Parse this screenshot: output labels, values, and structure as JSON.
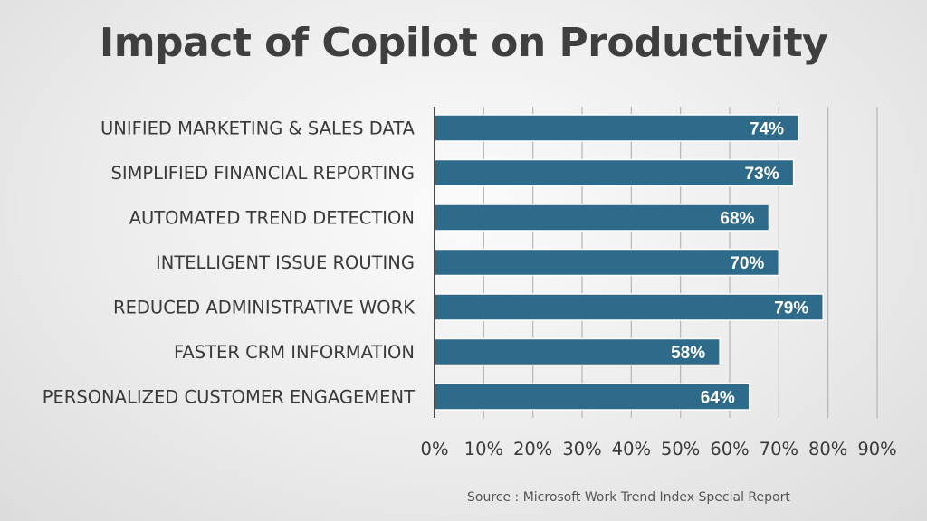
{
  "title": "Impact of Copilot on Productivity",
  "source": "Source : Microsoft Work Trend Index Special Report",
  "colors": {
    "bar": "#2e6b8b",
    "bar_border": "#ffffff",
    "grid": "#b5b5b5",
    "axis": "#4a4a4a",
    "label": "#3a3a3a",
    "value_label": "#ffffff"
  },
  "chart_data": {
    "type": "bar",
    "orientation": "horizontal",
    "title": "Impact of Copilot on Productivity",
    "categories": [
      "UNIFIED MARKETING & SALES DATA",
      "SIMPLIFIED FINANCIAL REPORTING",
      "AUTOMATED TREND DETECTION",
      "INTELLIGENT ISSUE ROUTING",
      "REDUCED ADMINISTRATIVE WORK",
      "FASTER CRM INFORMATION",
      "PERSONALIZED CUSTOMER ENGAGEMENT"
    ],
    "values": [
      74,
      73,
      68,
      70,
      79,
      58,
      64
    ],
    "value_labels": [
      "74%",
      "73%",
      "68%",
      "70%",
      "79%",
      "58%",
      "64%"
    ],
    "xlim": [
      0,
      90
    ],
    "x_ticks": [
      "0%",
      "10%",
      "20%",
      "30%",
      "40%",
      "50%",
      "60%",
      "70%",
      "80%",
      "90%"
    ],
    "grid": true,
    "legend": "none"
  }
}
